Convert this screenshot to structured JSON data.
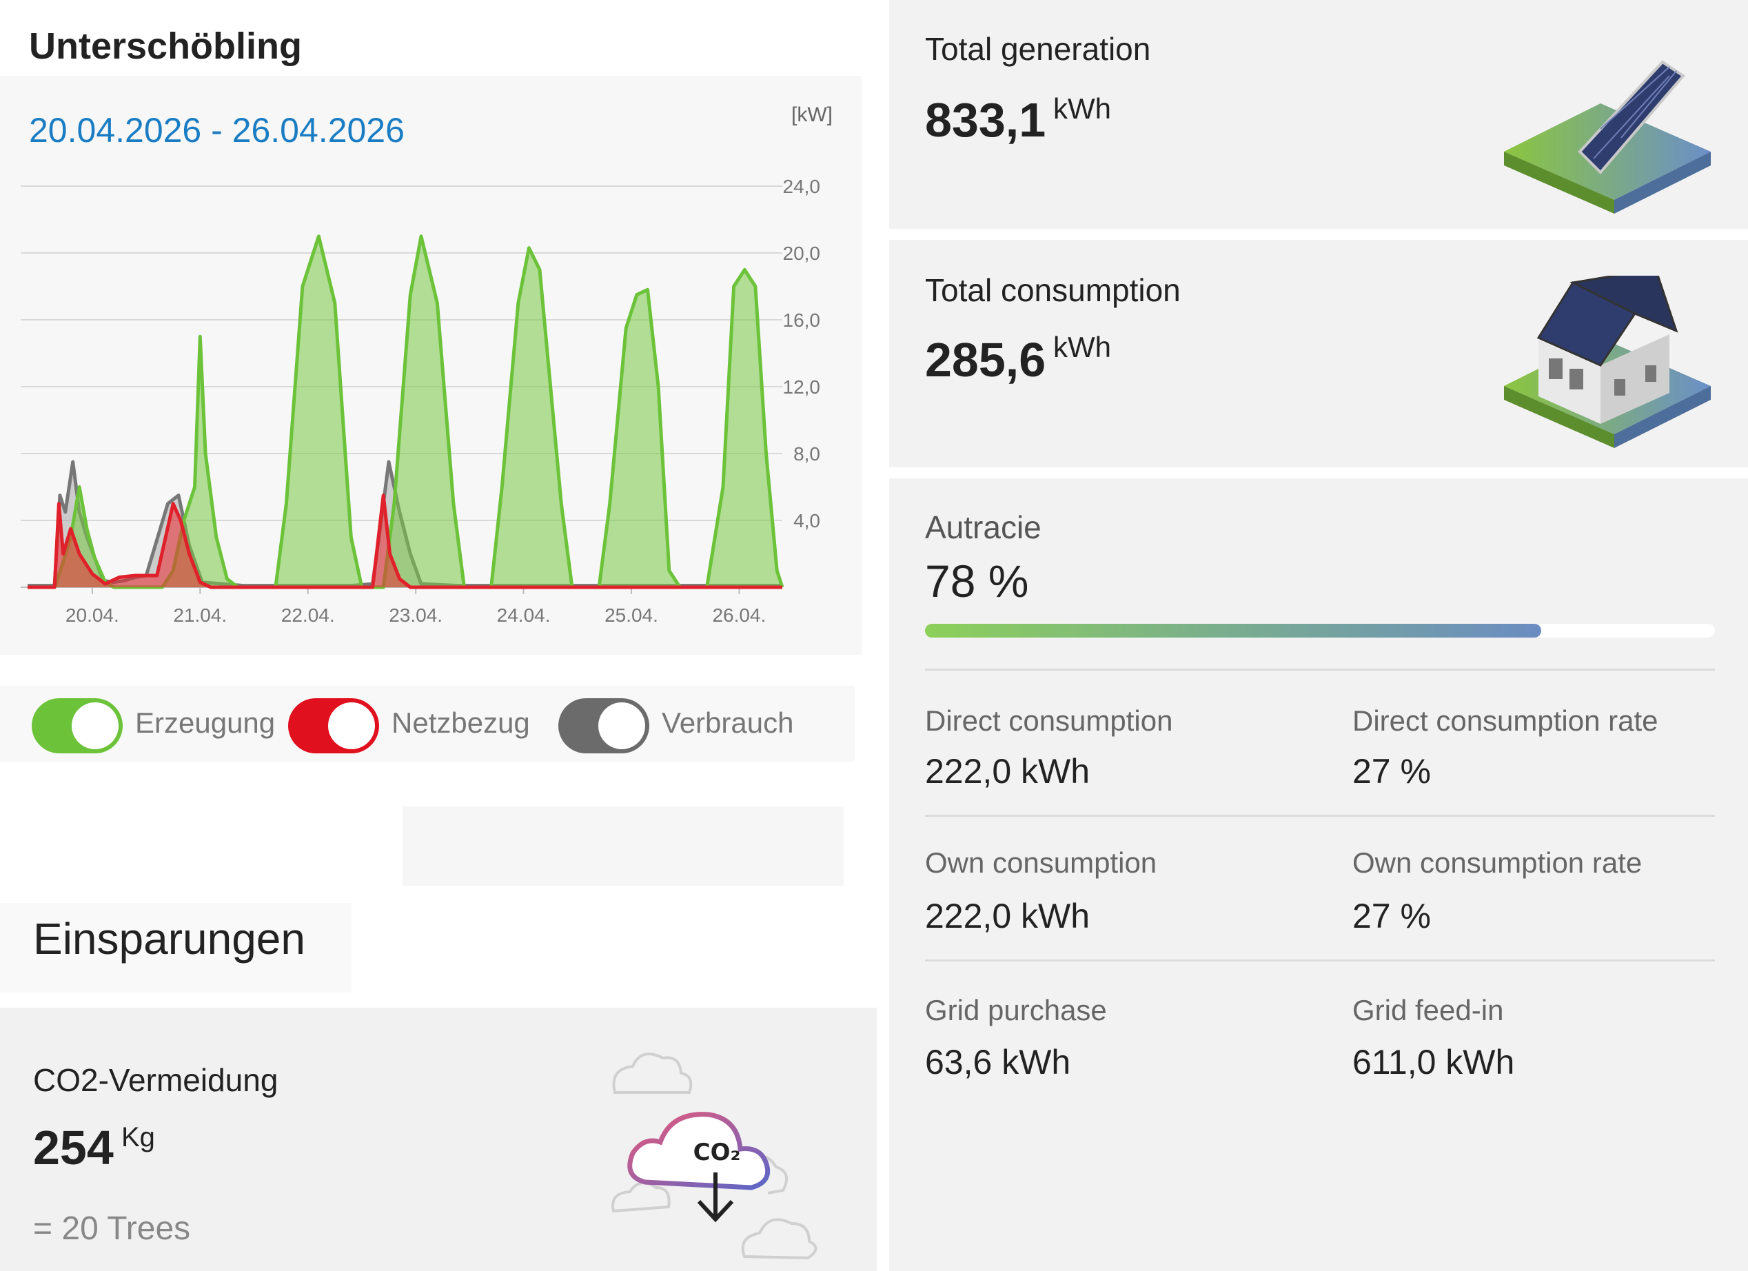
{
  "site": {
    "title": "Unterschöbling"
  },
  "period": {
    "range": "20.04.2026 - 26.04.2026"
  },
  "chart_data": {
    "type": "area",
    "unit_label": "[kW]",
    "ylim": [
      0,
      24
    ],
    "y_ticks": [
      "24,0",
      "20,0",
      "16,0",
      "12,0",
      "8,0",
      "4,0"
    ],
    "y_tick_values": [
      24,
      20,
      16,
      12,
      8,
      4
    ],
    "x_tick_labels": [
      "20.04.",
      "21.04.",
      "22.04.",
      "23.04.",
      "24.04.",
      "25.04.",
      "26.04."
    ],
    "x_range_days": [
      0,
      7
    ],
    "grid": true,
    "series": [
      {
        "name": "Verbrauch",
        "color": "#777777",
        "points": [
          [
            0,
            0.1
          ],
          [
            0.25,
            0.1
          ],
          [
            0.3,
            5.5
          ],
          [
            0.35,
            4.5
          ],
          [
            0.42,
            7.5
          ],
          [
            0.48,
            4.5
          ],
          [
            0.55,
            3.0
          ],
          [
            0.62,
            1.8
          ],
          [
            0.7,
            0.4
          ],
          [
            0.8,
            0.3
          ],
          [
            0.9,
            0.4
          ],
          [
            1.0,
            0.6
          ],
          [
            1.1,
            0.7
          ],
          [
            1.3,
            5.0
          ],
          [
            1.4,
            5.5
          ],
          [
            1.5,
            2.5
          ],
          [
            1.62,
            0.3
          ],
          [
            2.0,
            0.1
          ],
          [
            2.7,
            0.1
          ],
          [
            3.0,
            0.1
          ],
          [
            3.2,
            0.2
          ],
          [
            3.28,
            4.0
          ],
          [
            3.35,
            7.5
          ],
          [
            3.45,
            4.5
          ],
          [
            3.55,
            2.0
          ],
          [
            3.65,
            0.2
          ],
          [
            4.0,
            0.1
          ],
          [
            7.0,
            0.1
          ]
        ]
      },
      {
        "name": "Erzeugung",
        "color": "#6cc33a",
        "points": [
          [
            0,
            0
          ],
          [
            0.25,
            0
          ],
          [
            0.33,
            1.5
          ],
          [
            0.4,
            3.0
          ],
          [
            0.48,
            6.0
          ],
          [
            0.55,
            3.5
          ],
          [
            0.62,
            1.8
          ],
          [
            0.72,
            0.3
          ],
          [
            0.8,
            0
          ],
          [
            1.25,
            0
          ],
          [
            1.35,
            1.0
          ],
          [
            1.45,
            4.0
          ],
          [
            1.55,
            6.0
          ],
          [
            1.6,
            15.0
          ],
          [
            1.65,
            8.0
          ],
          [
            1.75,
            3.0
          ],
          [
            1.85,
            0.5
          ],
          [
            1.95,
            0
          ],
          [
            2.3,
            0
          ],
          [
            2.4,
            5.0
          ],
          [
            2.55,
            18.0
          ],
          [
            2.7,
            21.0
          ],
          [
            2.85,
            17.0
          ],
          [
            3.0,
            3.0
          ],
          [
            3.1,
            0
          ],
          [
            3.3,
            0
          ],
          [
            3.4,
            5.0
          ],
          [
            3.55,
            17.5
          ],
          [
            3.65,
            21.0
          ],
          [
            3.8,
            17.0
          ],
          [
            3.95,
            5.0
          ],
          [
            4.05,
            0
          ],
          [
            4.3,
            0
          ],
          [
            4.4,
            6.0
          ],
          [
            4.55,
            17.0
          ],
          [
            4.65,
            20.3
          ],
          [
            4.75,
            19.0
          ],
          [
            4.95,
            5.0
          ],
          [
            5.05,
            0
          ],
          [
            5.3,
            0
          ],
          [
            5.4,
            5.0
          ],
          [
            5.55,
            15.5
          ],
          [
            5.65,
            17.5
          ],
          [
            5.75,
            17.8
          ],
          [
            5.85,
            12.0
          ],
          [
            5.95,
            1.0
          ],
          [
            6.05,
            0
          ],
          [
            6.3,
            0
          ],
          [
            6.45,
            6.0
          ],
          [
            6.55,
            18.0
          ],
          [
            6.65,
            19.0
          ],
          [
            6.75,
            18.0
          ],
          [
            6.85,
            8.0
          ],
          [
            6.95,
            1.0
          ],
          [
            7.0,
            0
          ]
        ]
      },
      {
        "name": "Netzbezug",
        "color": "#e0202a",
        "points": [
          [
            0,
            0
          ],
          [
            0.25,
            0
          ],
          [
            0.29,
            5.0
          ],
          [
            0.33,
            2.0
          ],
          [
            0.4,
            3.5
          ],
          [
            0.48,
            2.0
          ],
          [
            0.6,
            0.8
          ],
          [
            0.72,
            0.2
          ],
          [
            0.85,
            0.6
          ],
          [
            1.0,
            0.7
          ],
          [
            1.2,
            0.7
          ],
          [
            1.35,
            5.0
          ],
          [
            1.42,
            4.0
          ],
          [
            1.5,
            2.0
          ],
          [
            1.6,
            0.3
          ],
          [
            1.7,
            0
          ],
          [
            3.2,
            0
          ],
          [
            3.3,
            5.5
          ],
          [
            3.36,
            2.0
          ],
          [
            3.45,
            0.5
          ],
          [
            3.55,
            0
          ],
          [
            7.0,
            0
          ]
        ]
      }
    ]
  },
  "legend": {
    "items": [
      {
        "label": "Erzeugung",
        "color": "#6cc33a"
      },
      {
        "label": "Netzbezug",
        "color": "#e0101e"
      },
      {
        "label": "Verbrauch",
        "color": "#6b6b6b"
      }
    ]
  },
  "savings": {
    "title": "Einsparungen",
    "co2_label": "CO2-Vermeidung",
    "co2_value": "254",
    "co2_unit": "Kg",
    "trees": "= 20 Trees",
    "illustration_icon": "co2-cloud-icon",
    "illustration_text": "CO₂"
  },
  "stats": {
    "generation": {
      "label": "Total generation",
      "value": "833,1",
      "unit": "kWh",
      "icon": "solar-panel-icon"
    },
    "consumption": {
      "label": "Total consumption",
      "value": "285,6",
      "unit": "kWh",
      "icon": "house-icon"
    },
    "autarky": {
      "label": "Autracie",
      "value": "78 %",
      "percent": 78
    },
    "metrics": [
      {
        "label": "Direct consumption",
        "value": "222,0 kWh"
      },
      {
        "label": "Direct consumption rate",
        "value": "27 %"
      },
      {
        "label": "Own consumption",
        "value": "222,0 kWh"
      },
      {
        "label": "Own consumption rate",
        "value": "27 %"
      },
      {
        "label": "Grid purchase",
        "value": "63,6 kWh"
      },
      {
        "label": "Grid feed-in",
        "value": "611,0 kWh"
      }
    ]
  }
}
